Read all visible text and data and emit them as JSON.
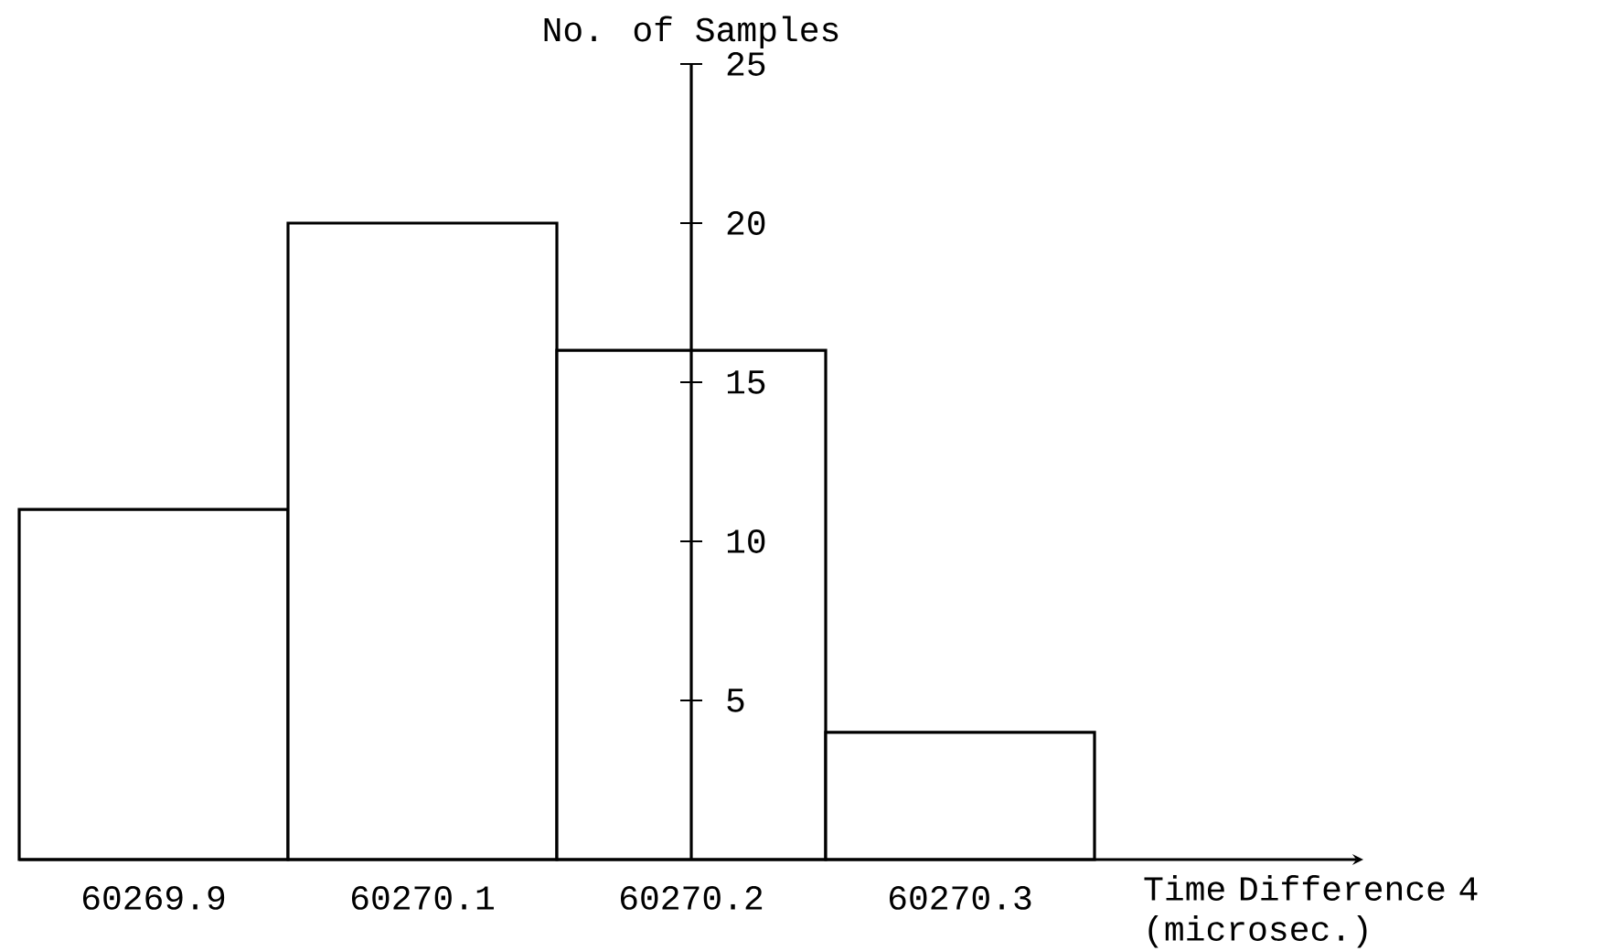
{
  "chart_data": {
    "type": "bar",
    "xlabel": "Time Difference 4 (microsec.)",
    "ylabel": "No. of Samples",
    "categories": [
      "60269.9",
      "60270.1",
      "60270.2",
      "60270.3"
    ],
    "values": [
      11,
      20,
      16,
      4
    ],
    "color": "#ffffff",
    "ylim": [
      0,
      25
    ],
    "yticks": [
      5,
      10,
      15,
      20,
      25
    ]
  }
}
